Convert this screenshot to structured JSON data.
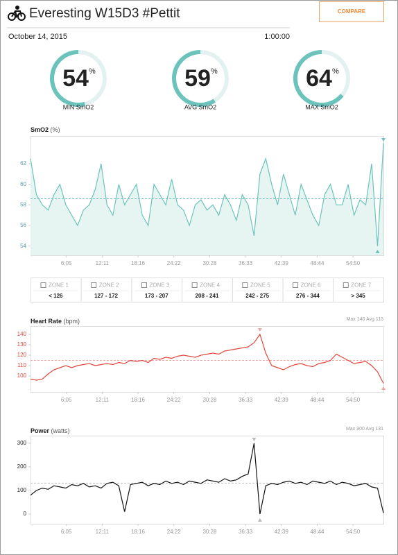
{
  "header": {
    "title": "Everesting W15D3 #Pettit",
    "button": "COMPARE",
    "date": "October 14, 2015",
    "duration": "1:00:00"
  },
  "gauges": [
    {
      "value": 54,
      "unit": "%",
      "label": "MIN SmO2"
    },
    {
      "value": 59,
      "unit": "%",
      "label": "AVG SmO2"
    },
    {
      "value": 64,
      "unit": "%",
      "label": "MAX SmO2"
    }
  ],
  "gauge_color": "#6cc3bb",
  "zones": [
    {
      "name": "ZONE 1",
      "range": "< 126"
    },
    {
      "name": "ZONE 2",
      "range": "127 - 172"
    },
    {
      "name": "ZONE 3",
      "range": "173 - 207"
    },
    {
      "name": "ZONE 4",
      "range": "208 - 241"
    },
    {
      "name": "ZONE 5",
      "range": "242 - 275"
    },
    {
      "name": "ZONE 6",
      "range": "276 - 344"
    },
    {
      "name": "ZONE 7",
      "range": "> 345"
    }
  ],
  "charts": [
    {
      "type": "line",
      "title": "SmO2",
      "unit": "(%)",
      "x": [
        0,
        60,
        120,
        180,
        240,
        300,
        360,
        420,
        480,
        540,
        600,
        660,
        720,
        780,
        840,
        900,
        960,
        1020,
        1080,
        1140,
        1200,
        1260,
        1320,
        1380,
        1440,
        1500,
        1560,
        1620,
        1680,
        1740,
        1800,
        1860,
        1920,
        1980,
        2040,
        2100,
        2160,
        2220,
        2280,
        2340,
        2400,
        2460,
        2520,
        2580,
        2640,
        2700,
        2760,
        2820,
        2880,
        2940,
        3000,
        3060,
        3120,
        3180,
        3240,
        3300,
        3360,
        3420,
        3480,
        3540,
        3600
      ],
      "xlim": [
        0,
        3600
      ],
      "xticks": [
        {
          "value": 365,
          "label": "6:05"
        },
        {
          "value": 731,
          "label": "12:11"
        },
        {
          "value": 1096,
          "label": "18:16"
        },
        {
          "value": 1462,
          "label": "24:22"
        },
        {
          "value": 1828,
          "label": "30:28"
        },
        {
          "value": 2193,
          "label": "36:33"
        },
        {
          "value": 2559,
          "label": "42:39"
        },
        {
          "value": 2924,
          "label": "48:44"
        },
        {
          "value": 3290,
          "label": "54:50"
        }
      ],
      "ylim": [
        53.1,
        64.7
      ],
      "yticks": [
        54,
        56,
        58,
        60,
        62
      ],
      "avg": 58.6,
      "series": [
        {
          "color": "#6cc3bb",
          "fill": "#e6f4f2",
          "values": [
            62.5,
            59,
            58,
            57.5,
            59,
            60,
            58,
            57,
            56,
            57.5,
            58,
            59.5,
            62,
            58,
            57,
            60,
            58,
            59,
            60,
            57,
            56,
            60,
            59,
            58,
            60.5,
            58,
            57.5,
            56,
            58,
            58.5,
            57.5,
            58,
            57,
            59,
            58,
            56.5,
            59,
            58,
            55,
            61,
            62.5,
            60,
            58,
            61,
            59,
            57,
            60,
            58.5,
            57,
            56,
            59,
            60,
            58,
            58,
            60,
            57,
            58.5,
            58,
            62,
            54,
            64
          ]
        }
      ],
      "tick_color": "#5f9fb0",
      "avg_color": "#6cc3bb"
    },
    {
      "type": "line",
      "title": "Heart Rate",
      "unit": "(bpm)",
      "max_label": "Max",
      "max": 140,
      "avg_label": "Avg",
      "avg": 115,
      "x": [
        0,
        60,
        120,
        180,
        240,
        300,
        360,
        420,
        480,
        540,
        600,
        660,
        720,
        780,
        840,
        900,
        960,
        1020,
        1080,
        1140,
        1200,
        1260,
        1320,
        1380,
        1440,
        1500,
        1560,
        1620,
        1680,
        1740,
        1800,
        1860,
        1920,
        1980,
        2040,
        2100,
        2160,
        2220,
        2280,
        2340,
        2400,
        2460,
        2520,
        2580,
        2640,
        2700,
        2760,
        2820,
        2880,
        2940,
        3000,
        3060,
        3120,
        3180,
        3240,
        3300,
        3360,
        3420,
        3480,
        3540,
        3600
      ],
      "xlim": [
        0,
        3600
      ],
      "xticks": [
        {
          "value": 365,
          "label": "6:05"
        },
        {
          "value": 731,
          "label": "12:11"
        },
        {
          "value": 1096,
          "label": "18:16"
        },
        {
          "value": 1462,
          "label": "24:22"
        },
        {
          "value": 1828,
          "label": "30:28"
        },
        {
          "value": 2193,
          "label": "36:33"
        },
        {
          "value": 2559,
          "label": "42:39"
        },
        {
          "value": 2924,
          "label": "48:44"
        },
        {
          "value": 3290,
          "label": "54:50"
        }
      ],
      "ylim": [
        84.7,
        148
      ],
      "yticks": [
        100,
        110,
        120,
        130,
        140
      ],
      "series": [
        {
          "color": "#e0463c",
          "values": [
            97,
            96,
            97,
            102,
            106,
            108,
            110,
            108,
            110,
            111,
            112,
            110,
            111,
            112,
            111,
            113,
            112,
            115,
            114,
            115,
            113,
            117,
            116,
            118,
            117,
            119,
            120,
            119,
            118,
            120,
            121,
            122,
            121,
            124,
            125,
            126,
            127,
            128,
            132,
            140,
            122,
            110,
            108,
            106,
            109,
            111,
            112,
            110,
            109,
            112,
            113,
            115,
            121,
            118,
            115,
            112,
            113,
            114,
            110,
            104,
            93
          ]
        }
      ],
      "tick_color": "#e0463c",
      "avg_color": "#f2a6a6"
    },
    {
      "type": "line",
      "title": "Power",
      "unit": "(watts)",
      "max_label": "Max",
      "max": 300,
      "avg_label": "Avg",
      "avg": 131,
      "x": [
        0,
        60,
        120,
        180,
        240,
        300,
        360,
        420,
        480,
        540,
        600,
        660,
        720,
        780,
        840,
        900,
        960,
        1020,
        1080,
        1140,
        1200,
        1260,
        1320,
        1380,
        1440,
        1500,
        1560,
        1620,
        1680,
        1740,
        1800,
        1860,
        1920,
        1980,
        2040,
        2100,
        2160,
        2220,
        2280,
        2340,
        2400,
        2460,
        2520,
        2580,
        2640,
        2700,
        2760,
        2820,
        2880,
        2940,
        3000,
        3060,
        3120,
        3180,
        3240,
        3300,
        3360,
        3420,
        3480,
        3540,
        3600
      ],
      "xlim": [
        0,
        3600
      ],
      "xticks": [
        {
          "value": 365,
          "label": "6:05"
        },
        {
          "value": 731,
          "label": "12:11"
        },
        {
          "value": 1096,
          "label": "18:16"
        },
        {
          "value": 1462,
          "label": "24:22"
        },
        {
          "value": 1828,
          "label": "30:28"
        },
        {
          "value": 2193,
          "label": "36:33"
        },
        {
          "value": 2559,
          "label": "42:39"
        },
        {
          "value": 2924,
          "label": "48:44"
        },
        {
          "value": 3290,
          "label": "54:50"
        }
      ],
      "ylim": [
        -41,
        332
      ],
      "yticks": [
        0,
        100,
        200,
        300
      ],
      "series": [
        {
          "color": "#111111",
          "values": [
            80,
            100,
            110,
            105,
            120,
            115,
            110,
            125,
            120,
            130,
            115,
            120,
            110,
            130,
            135,
            120,
            10,
            125,
            130,
            135,
            120,
            130,
            125,
            140,
            130,
            135,
            125,
            140,
            135,
            130,
            145,
            140,
            135,
            150,
            140,
            145,
            160,
            170,
            300,
            0,
            120,
            130,
            125,
            135,
            140,
            130,
            135,
            125,
            140,
            135,
            130,
            140,
            125,
            135,
            130,
            120,
            125,
            130,
            115,
            110,
            5
          ]
        }
      ],
      "tick_color": "#222222",
      "avg_color": "#bbbbbb"
    }
  ]
}
